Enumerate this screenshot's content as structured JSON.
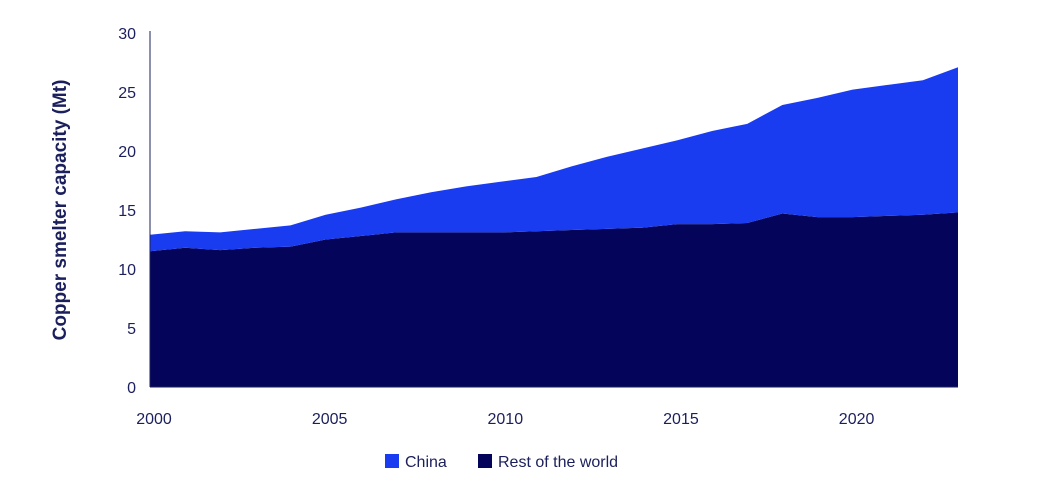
{
  "chart_data": {
    "type": "area",
    "stacked": true,
    "title": "",
    "xlabel": "",
    "ylabel": "Copper smelter capacity (Mt)",
    "x": [
      2000,
      2001,
      2002,
      2003,
      2004,
      2005,
      2006,
      2007,
      2008,
      2009,
      2010,
      2011,
      2012,
      2013,
      2014,
      2015,
      2016,
      2017,
      2018,
      2019,
      2020,
      2021,
      2022,
      2023
    ],
    "xlim": [
      2000,
      2023
    ],
    "ylim": [
      0,
      30
    ],
    "xticks": [
      2000,
      2005,
      2010,
      2015,
      2020
    ],
    "yticks": [
      0,
      5,
      10,
      15,
      20,
      25,
      30
    ],
    "grid": false,
    "legend_position": "bottom-center",
    "series": [
      {
        "name": "Rest of the world",
        "color": "#04045a",
        "values": [
          11.5,
          11.8,
          11.6,
          11.8,
          11.9,
          12.5,
          12.8,
          13.1,
          13.1,
          13.1,
          13.1,
          13.2,
          13.3,
          13.4,
          13.5,
          13.8,
          13.8,
          13.9,
          14.7,
          14.4,
          14.4,
          14.5,
          14.6,
          14.8
        ]
      },
      {
        "name": "China",
        "color": "#1a3cf0",
        "values": [
          1.4,
          1.4,
          1.5,
          1.6,
          1.8,
          2.1,
          2.4,
          2.8,
          3.4,
          3.9,
          4.3,
          4.6,
          5.4,
          6.1,
          6.7,
          7.1,
          7.9,
          8.4,
          9.2,
          10.1,
          10.8,
          11.1,
          11.4,
          12.3
        ]
      }
    ]
  }
}
